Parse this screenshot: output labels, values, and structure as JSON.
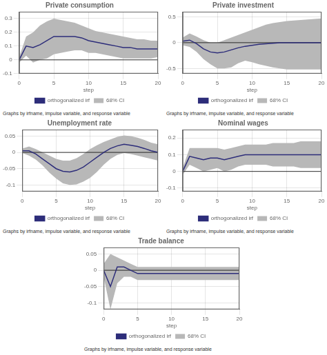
{
  "chart_data": [
    {
      "type": "line",
      "title": "Private consumption",
      "xlabel": "step",
      "x": [
        0,
        1,
        2,
        3,
        4,
        5,
        6,
        7,
        8,
        9,
        10,
        11,
        12,
        13,
        14,
        15,
        16,
        17,
        18,
        19,
        20
      ],
      "xlim": [
        0,
        20
      ],
      "xticks": [
        0,
        5,
        10,
        15,
        20
      ],
      "ylim": [
        -0.1,
        0.35
      ],
      "yticks": [
        -0.1,
        0,
        0.1,
        0.2,
        0.3
      ],
      "grid": true,
      "legend": "bottom",
      "reference_line": 0,
      "caption": "Graphs by irfname, impulse variable, and response variable",
      "series": [
        {
          "name": "68% CI",
          "type": "area",
          "color": "#b8b8b8",
          "upper": [
            0.02,
            0.17,
            0.2,
            0.25,
            0.28,
            0.3,
            0.29,
            0.28,
            0.27,
            0.25,
            0.23,
            0.21,
            0.2,
            0.19,
            0.18,
            0.17,
            0.16,
            0.15,
            0.15,
            0.14,
            0.14
          ],
          "lower": [
            -0.02,
            0.03,
            -0.02,
            0.0,
            0.01,
            0.04,
            0.05,
            0.06,
            0.07,
            0.07,
            0.05,
            0.05,
            0.04,
            0.03,
            0.02,
            0.01,
            0.01,
            0.01,
            0.01,
            0.01,
            0.02
          ]
        },
        {
          "name": "orthogonalized irf",
          "type": "line",
          "color": "#2d2d7a",
          "values": [
            0.0,
            0.1,
            0.09,
            0.11,
            0.14,
            0.17,
            0.17,
            0.17,
            0.17,
            0.16,
            0.14,
            0.13,
            0.12,
            0.11,
            0.1,
            0.09,
            0.09,
            0.08,
            0.08,
            0.08,
            0.08
          ]
        }
      ]
    },
    {
      "type": "line",
      "title": "Private investment",
      "xlabel": "step",
      "x": [
        0,
        1,
        2,
        3,
        4,
        5,
        6,
        7,
        8,
        9,
        10,
        11,
        12,
        13,
        14,
        15,
        16,
        17,
        18,
        19,
        20
      ],
      "xlim": [
        0,
        20
      ],
      "xticks": [
        0,
        5,
        10,
        15,
        20
      ],
      "ylim": [
        -0.6,
        0.6
      ],
      "yticks": [
        -0.5,
        0,
        0.5
      ],
      "grid": true,
      "legend": "bottom",
      "reference_line": 0,
      "caption": "Graphs by irfname, impulse variable, and response variable",
      "series": [
        {
          "name": "68% CI",
          "type": "area",
          "color": "#b8b8b8",
          "upper": [
            0.1,
            0.18,
            0.12,
            0.05,
            0.0,
            0.0,
            0.05,
            0.1,
            0.15,
            0.2,
            0.25,
            0.3,
            0.35,
            0.38,
            0.4,
            0.42,
            0.43,
            0.44,
            0.45,
            0.46,
            0.47
          ],
          "lower": [
            -0.05,
            -0.08,
            -0.18,
            -0.32,
            -0.42,
            -0.5,
            -0.5,
            -0.48,
            -0.4,
            -0.35,
            -0.38,
            -0.42,
            -0.45,
            -0.48,
            -0.5,
            -0.52,
            -0.52,
            -0.52,
            -0.52,
            -0.52,
            -0.52
          ]
        },
        {
          "name": "orthogonalized irf",
          "type": "line",
          "color": "#2d2d7a",
          "values": [
            0.03,
            0.05,
            -0.02,
            -0.12,
            -0.18,
            -0.2,
            -0.18,
            -0.14,
            -0.1,
            -0.07,
            -0.05,
            -0.03,
            -0.02,
            -0.01,
            0.0,
            0.0,
            0.0,
            0.0,
            0.0,
            0.0,
            0.0
          ]
        }
      ]
    },
    {
      "type": "line",
      "title": "Unemployment rate",
      "xlabel": "step",
      "x": [
        0,
        1,
        2,
        3,
        4,
        5,
        6,
        7,
        8,
        9,
        10,
        11,
        12,
        13,
        14,
        15,
        16,
        17,
        18,
        19,
        20
      ],
      "xlim": [
        0,
        20
      ],
      "xticks": [
        0,
        5,
        10,
        15,
        20
      ],
      "ylim": [
        -0.12,
        0.07
      ],
      "yticks": [
        -0.1,
        -0.05,
        0,
        0.05
      ],
      "grid": true,
      "legend": "bottom",
      "reference_line": 0,
      "caption": "Graphs by irfname, impulse variable, and response variable",
      "series": [
        {
          "name": "68% CI",
          "type": "area",
          "color": "#b8b8b8",
          "upper": [
            0.012,
            0.018,
            0.01,
            0.0,
            -0.01,
            -0.02,
            -0.025,
            -0.025,
            -0.018,
            -0.005,
            0.01,
            0.022,
            0.032,
            0.04,
            0.048,
            0.052,
            0.05,
            0.045,
            0.038,
            0.03,
            0.025
          ],
          "lower": [
            -0.002,
            -0.01,
            -0.022,
            -0.04,
            -0.062,
            -0.08,
            -0.095,
            -0.1,
            -0.098,
            -0.09,
            -0.078,
            -0.06,
            -0.038,
            -0.02,
            -0.008,
            -0.002,
            -0.005,
            -0.01,
            -0.015,
            -0.02,
            -0.025
          ]
        },
        {
          "name": "orthogonalized irf",
          "type": "line",
          "color": "#2d2d7a",
          "values": [
            0.005,
            0.005,
            -0.005,
            -0.02,
            -0.035,
            -0.05,
            -0.058,
            -0.06,
            -0.055,
            -0.045,
            -0.03,
            -0.015,
            0.0,
            0.012,
            0.02,
            0.025,
            0.022,
            0.018,
            0.012,
            0.005,
            0.0
          ]
        }
      ]
    },
    {
      "type": "line",
      "title": "Nominal wages",
      "xlabel": "step",
      "x": [
        0,
        1,
        2,
        3,
        4,
        5,
        6,
        7,
        8,
        9,
        10,
        11,
        12,
        13,
        14,
        15,
        16,
        17,
        18,
        19,
        20
      ],
      "xlim": [
        0,
        20
      ],
      "xticks": [
        0,
        5,
        10,
        15,
        20
      ],
      "ylim": [
        -0.12,
        0.25
      ],
      "yticks": [
        -0.1,
        0,
        0.1,
        0.2
      ],
      "grid": true,
      "legend": "bottom",
      "reference_line": 0,
      "caption": "Graphs by irfname, impulse variable, and response variable",
      "series": [
        {
          "name": "68% CI",
          "type": "area",
          "color": "#b8b8b8",
          "upper": [
            0.02,
            0.14,
            0.14,
            0.14,
            0.14,
            0.14,
            0.13,
            0.14,
            0.15,
            0.16,
            0.16,
            0.16,
            0.16,
            0.17,
            0.17,
            0.17,
            0.17,
            0.18,
            0.18,
            0.18,
            0.18
          ],
          "lower": [
            -0.02,
            0.04,
            0.02,
            0.0,
            0.01,
            0.02,
            0.0,
            0.01,
            0.03,
            0.04,
            0.04,
            0.04,
            0.04,
            0.03,
            0.03,
            0.03,
            0.03,
            0.02,
            0.02,
            0.02,
            0.02
          ]
        },
        {
          "name": "orthogonalized irf",
          "type": "line",
          "color": "#2d2d7a",
          "values": [
            0.0,
            0.09,
            0.08,
            0.07,
            0.08,
            0.08,
            0.07,
            0.08,
            0.09,
            0.1,
            0.1,
            0.1,
            0.1,
            0.1,
            0.1,
            0.1,
            0.1,
            0.1,
            0.1,
            0.1,
            0.1
          ]
        }
      ]
    },
    {
      "type": "line",
      "title": "Trade balance",
      "xlabel": "step",
      "x": [
        0,
        1,
        2,
        3,
        4,
        5,
        6,
        7,
        8,
        9,
        10,
        11,
        12,
        13,
        14,
        15,
        16,
        17,
        18,
        19,
        20
      ],
      "xlim": [
        0,
        20
      ],
      "xticks": [
        0,
        5,
        10,
        15,
        20
      ],
      "ylim": [
        -0.12,
        0.07
      ],
      "yticks": [
        -0.1,
        -0.05,
        0,
        0.05
      ],
      "grid": true,
      "legend": "bottom",
      "reference_line": 0,
      "caption": "Graphs by irfname, impulse variable, and response variable",
      "series": [
        {
          "name": "68% CI",
          "type": "area",
          "color": "#b8b8b8",
          "upper": [
            0.02,
            0.05,
            0.04,
            0.03,
            0.02,
            0.01,
            0.01,
            0.01,
            0.01,
            0.01,
            0.01,
            0.01,
            0.01,
            0.01,
            0.01,
            0.01,
            0.01,
            0.01,
            0.01,
            0.01,
            0.01
          ],
          "lower": [
            -0.02,
            -0.12,
            -0.04,
            -0.02,
            -0.02,
            -0.03,
            -0.03,
            -0.03,
            -0.03,
            -0.03,
            -0.03,
            -0.03,
            -0.03,
            -0.03,
            -0.03,
            -0.03,
            -0.03,
            -0.03,
            -0.03,
            -0.03,
            -0.03
          ]
        },
        {
          "name": "orthogonalized irf",
          "type": "line",
          "color": "#2d2d7a",
          "values": [
            0.0,
            -0.05,
            0.01,
            0.01,
            0.0,
            -0.01,
            -0.01,
            -0.01,
            -0.01,
            -0.01,
            -0.01,
            -0.01,
            -0.01,
            -0.01,
            -0.01,
            -0.01,
            -0.01,
            -0.01,
            -0.01,
            -0.01,
            -0.01
          ]
        }
      ]
    }
  ]
}
